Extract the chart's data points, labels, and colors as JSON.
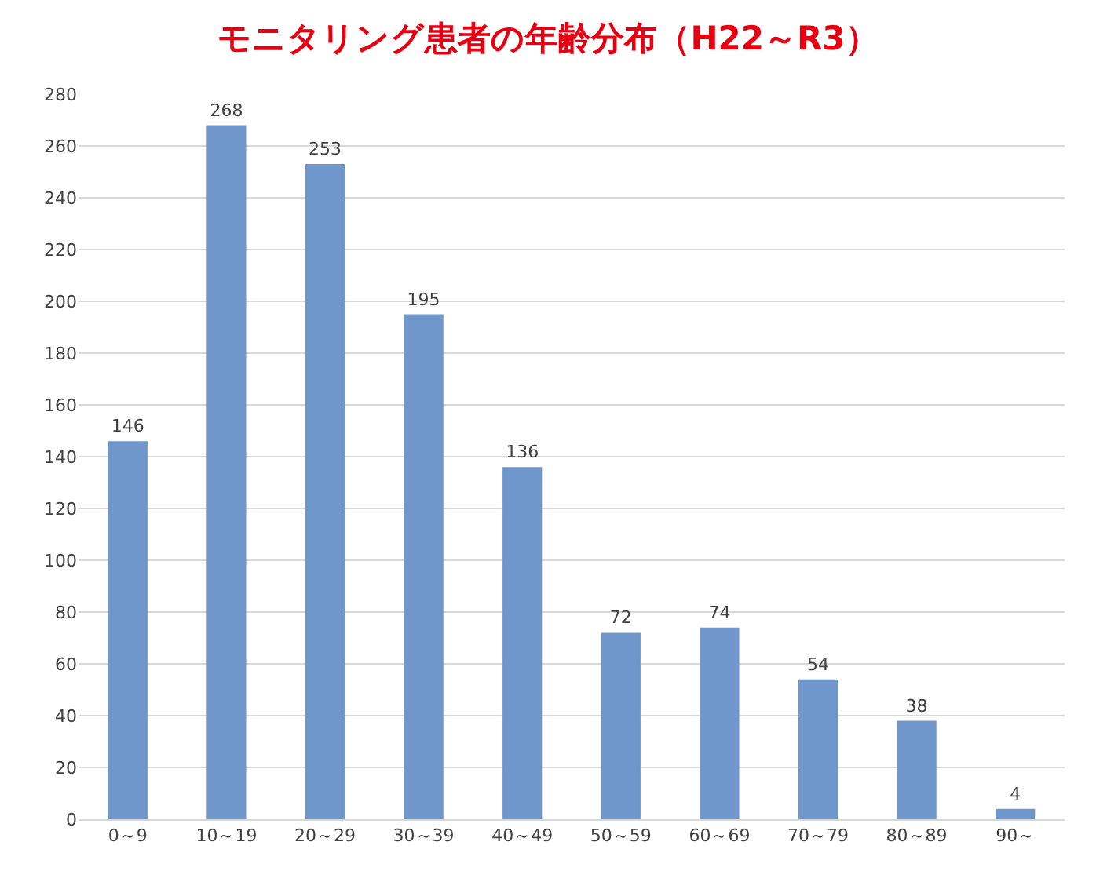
{
  "chart_data": {
    "type": "bar",
    "title": "モニタリング患者の年齢分布（H22～R3）",
    "categories": [
      "0～9",
      "10～19",
      "20～29",
      "30～39",
      "40～49",
      "50～59",
      "60～69",
      "70～79",
      "80～89",
      "90～"
    ],
    "values": [
      146,
      268,
      253,
      195,
      136,
      72,
      74,
      54,
      38,
      4
    ],
    "color": "#6f97cc",
    "ylim": [
      0,
      280
    ],
    "yticks": [
      0,
      20,
      40,
      60,
      80,
      100,
      120,
      140,
      160,
      180,
      200,
      220,
      240,
      260,
      280
    ],
    "grid": "y",
    "data_labels": true
  }
}
